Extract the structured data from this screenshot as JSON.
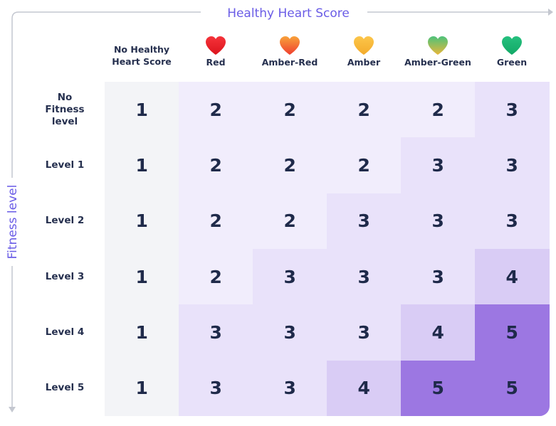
{
  "header": {
    "x_axis_label": "Healthy Heart Score",
    "y_axis_label": "Fitness level"
  },
  "columns": [
    {
      "label": "No Healthy Heart Score"
    },
    {
      "label": "Red",
      "heart": [
        "#f5333a",
        "#dc141d"
      ]
    },
    {
      "label": "Amber-Red",
      "heart": [
        "#f8a23a",
        "#ef3e2f"
      ]
    },
    {
      "label": "Amber",
      "heart": [
        "#fcc64a",
        "#f3ab2c"
      ]
    },
    {
      "label": "Amber-Green",
      "heart": [
        "#4cc27a",
        "#e8b73a"
      ]
    },
    {
      "label": "Green",
      "heart": [
        "#25c07e",
        "#12a866"
      ]
    }
  ],
  "rows": [
    {
      "label": "No Fitness level",
      "cells": [
        1,
        2,
        2,
        2,
        2,
        3
      ]
    },
    {
      "label": "Level 1",
      "cells": [
        1,
        2,
        2,
        2,
        3,
        3
      ]
    },
    {
      "label": "Level 2",
      "cells": [
        1,
        2,
        2,
        3,
        3,
        3
      ]
    },
    {
      "label": "Level 3",
      "cells": [
        1,
        2,
        3,
        3,
        3,
        4
      ]
    },
    {
      "label": "Level 4",
      "cells": [
        1,
        3,
        3,
        3,
        4,
        5
      ]
    },
    {
      "label": "Level 5",
      "cells": [
        1,
        3,
        3,
        4,
        5,
        5
      ]
    }
  ],
  "cell_colors": [
    "#f3f4f7",
    "#f1edfc",
    "#e9e2fa",
    "#d9ccf5",
    "#9c77e2"
  ]
}
